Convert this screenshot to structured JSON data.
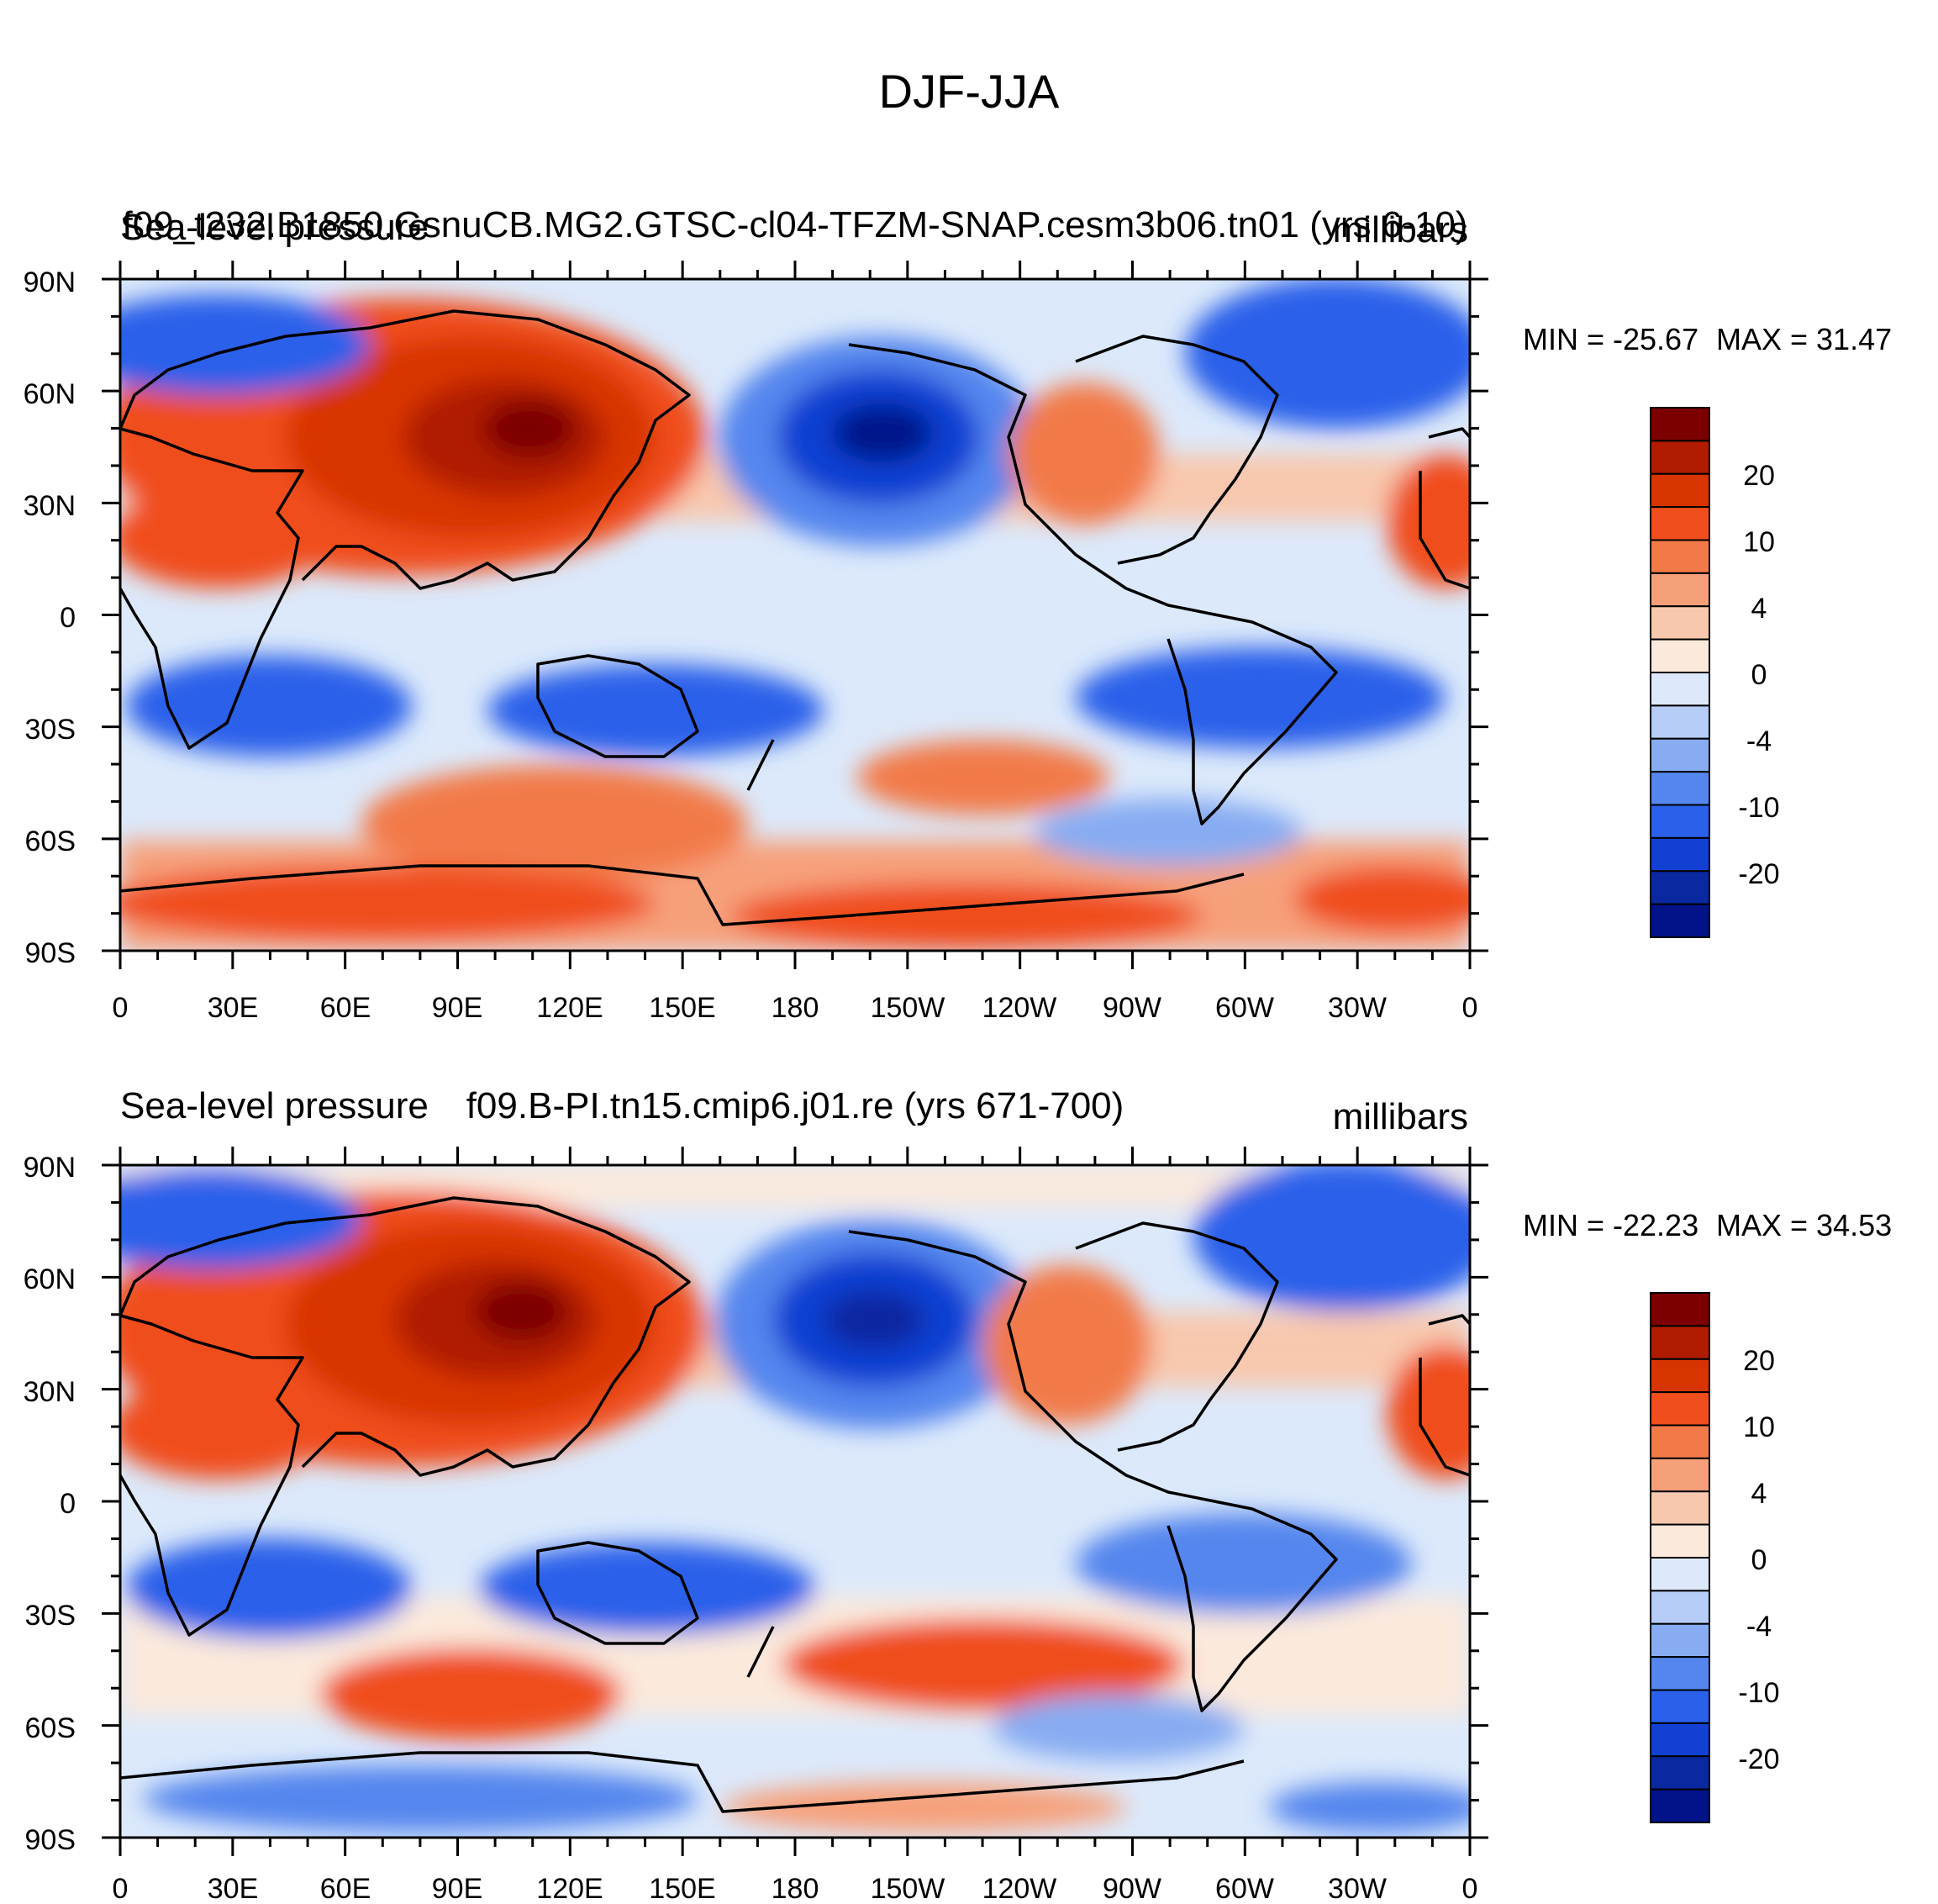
{
  "figure": {
    "title": "DJF-JJA",
    "panels": [
      {
        "left_title": "Sea-level pressure",
        "center_title": "f09_t232.B1850.GsnuCB.MG2.GTSC-cl04-TFZM-SNAP.cesm3b06.tn01 (yrs 6-10)",
        "units": "millibars",
        "min_label": "MIN = -25.67",
        "max_label": "MAX =  31.47"
      },
      {
        "left_title": "Sea-level pressure",
        "center_title": "f09.B-PI.tn15.cmip6.j01.re (yrs 671-700)",
        "units": "millibars",
        "min_label": "MIN = -22.23",
        "max_label": "MAX =  34.53"
      }
    ],
    "lat_labels": [
      "90N",
      "60N",
      "30N",
      "0",
      "30S",
      "60S",
      "90S"
    ],
    "lon_labels": [
      "0",
      "30E",
      "60E",
      "90E",
      "120E",
      "150E",
      "180",
      "150W",
      "120W",
      "90W",
      "60W",
      "30W",
      "0"
    ],
    "colorbar": {
      "labels": [
        "20",
        "10",
        "4",
        "0",
        "-4",
        "-10",
        "-20"
      ],
      "colors": [
        "#7d0000",
        "#b01c00",
        "#d83400",
        "#f04e1c",
        "#f27a48",
        "#f6a07a",
        "#f8c8ae",
        "#fbe9dc",
        "#dde9fb",
        "#b5cdf7",
        "#87acf2",
        "#5486ee",
        "#2a60ea",
        "#1140d2",
        "#0a28a0",
        "#02138a"
      ]
    }
  }
}
